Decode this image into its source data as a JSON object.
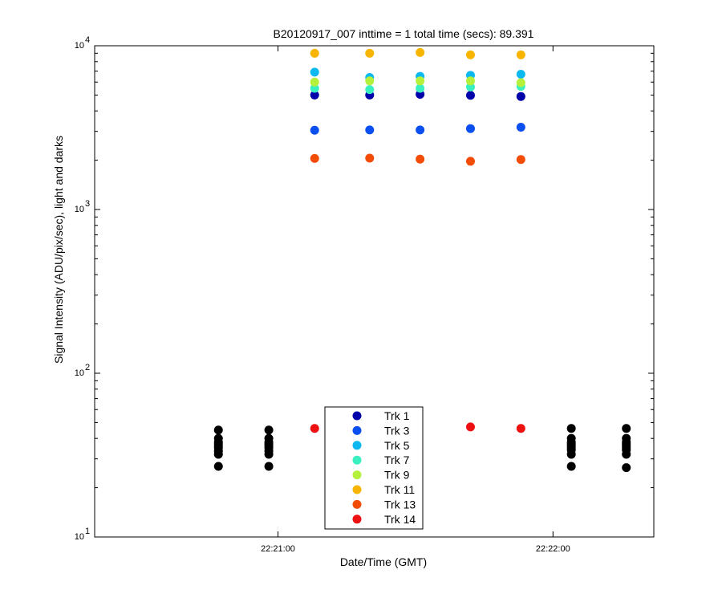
{
  "chart_data": {
    "type": "scatter",
    "title": "B20120917_007 inttime = 1 total time (secs): 89.391",
    "xlabel": "Date/Time (GMT)",
    "ylabel": "Signal Intensity (ADU/pix/sec), light and darks",
    "xscale": "time",
    "xlim": [
      "22:20:20",
      "22:22:22"
    ],
    "yscale": "log",
    "ylim": [
      10,
      10000
    ],
    "grid": false,
    "x_ticks": [
      {
        "t": "22:21:00",
        "label": "22:21:00"
      },
      {
        "t": "22:22:00",
        "label": "22:22:00"
      }
    ],
    "y_ticks": [
      {
        "value": 10,
        "base": "10",
        "exp": "1"
      },
      {
        "value": 100,
        "base": "10",
        "exp": "2"
      },
      {
        "value": 1000,
        "base": "10",
        "exp": "3"
      },
      {
        "value": 10000,
        "base": "10",
        "exp": "4"
      }
    ],
    "light_times": [
      "22:21:08",
      "22:21:20",
      "22:21:31",
      "22:21:42",
      "22:21:53"
    ],
    "series": [
      {
        "name": "Trk 1",
        "color": "#0000aa",
        "values": [
          5000,
          5000,
          5050,
          4980,
          4900
        ]
      },
      {
        "name": "Trk 3",
        "color": "#0b4ff0",
        "values": [
          3050,
          3060,
          3060,
          3120,
          3180
        ]
      },
      {
        "name": "Trk 5",
        "color": "#0bb8f0",
        "values": [
          6900,
          6400,
          6500,
          6600,
          6700
        ]
      },
      {
        "name": "Trk 7",
        "color": "#3af0c0",
        "values": [
          5500,
          5400,
          5500,
          5600,
          5650
        ]
      },
      {
        "name": "Trk 9",
        "color": "#b5f03a",
        "values": [
          6000,
          6100,
          6100,
          6100,
          5950
        ]
      },
      {
        "name": "Trk 11",
        "color": "#f8b500",
        "values": [
          9000,
          9000,
          9100,
          8800,
          8800
        ]
      },
      {
        "name": "Trk 13",
        "color": "#f24c07",
        "values": [
          2050,
          2060,
          2030,
          1970,
          2020
        ]
      },
      {
        "name": "Trk 14",
        "color": "#ee1111",
        "values": [
          46,
          null,
          null,
          47,
          46
        ]
      }
    ],
    "darks": {
      "color": "#000000",
      "groups": [
        {
          "t": "22:20:47",
          "values": [
            45,
            40,
            38,
            37,
            36,
            35,
            33.5,
            32,
            27
          ]
        },
        {
          "t": "22:20:58",
          "values": [
            45,
            40,
            38,
            37,
            36,
            35,
            33.5,
            32,
            27
          ]
        },
        {
          "t": "22:22:04",
          "values": [
            46,
            40,
            38,
            37,
            36,
            35,
            34,
            32,
            27
          ]
        },
        {
          "t": "22:22:16",
          "values": [
            46,
            40,
            38,
            37,
            36,
            35,
            34,
            32,
            26.5
          ]
        }
      ]
    },
    "legend": {
      "location": "bottom-center",
      "entries": [
        "Trk 1",
        "Trk 3",
        "Trk 5",
        "Trk 7",
        "Trk 9",
        "Trk 11",
        "Trk 13",
        "Trk 14"
      ]
    }
  }
}
